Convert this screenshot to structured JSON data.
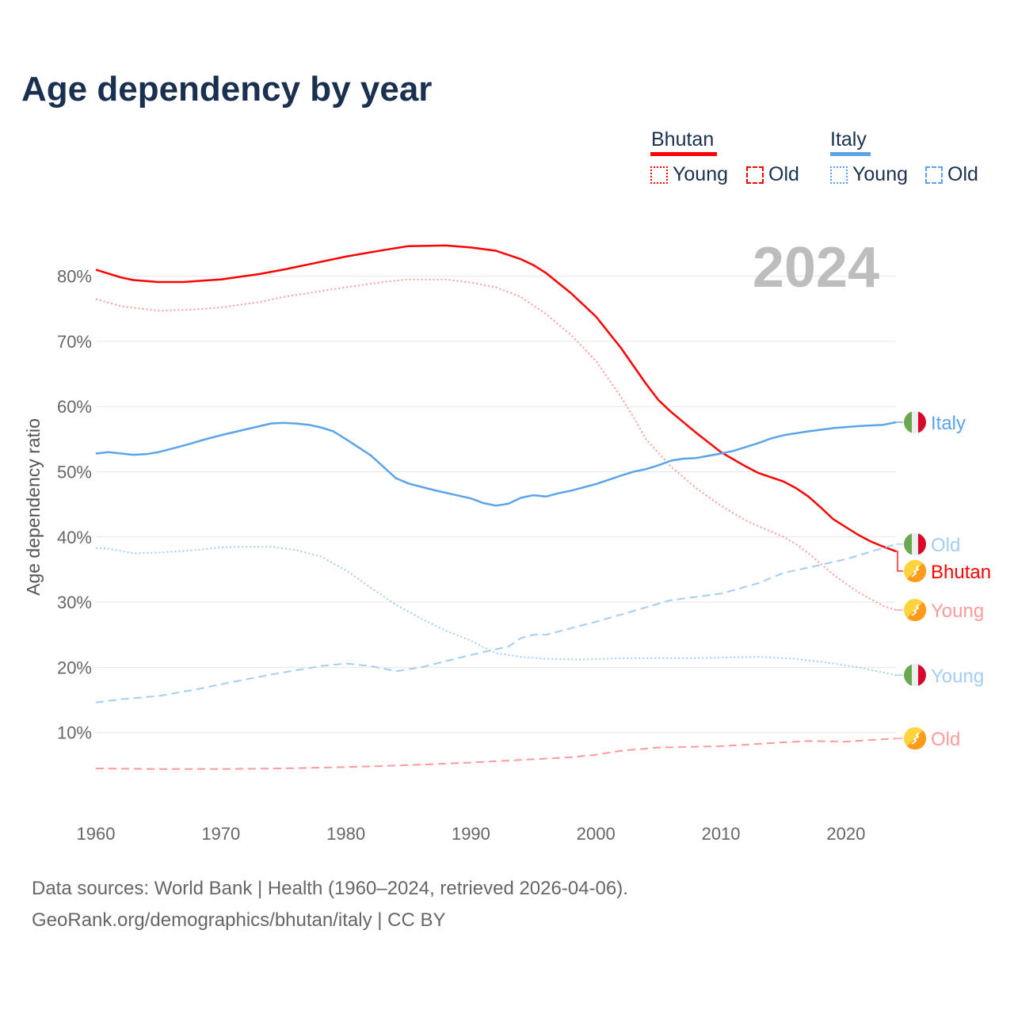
{
  "chart_data": {
    "type": "line",
    "title": "Age dependency by year",
    "ylabel": "Age dependency ratio",
    "xlabel": "",
    "year_watermark": "2024",
    "xlim": [
      1960,
      2024
    ],
    "ylim": [
      0,
      85
    ],
    "x_ticks": [
      "1960",
      "1970",
      "1980",
      "1990",
      "2000",
      "2010",
      "2020"
    ],
    "y_ticks": [
      "10%",
      "20%",
      "30%",
      "40%",
      "50%",
      "60%",
      "70%",
      "80%"
    ],
    "grid": true,
    "legend_placement": "top-right",
    "legend": {
      "countries": [
        {
          "name": "Bhutan",
          "color": "#ff0000",
          "items": [
            "Young",
            "Old"
          ]
        },
        {
          "name": "Italy",
          "color": "#5ba4ea",
          "items": [
            "Young",
            "Old"
          ]
        }
      ]
    },
    "series": [
      {
        "country": "Bhutan",
        "name": "Bhutan",
        "kind": "total",
        "label": "Bhutan",
        "color": "#ff0000",
        "dash": "solid",
        "points": [
          [
            1960,
            81
          ],
          [
            1962,
            79.8
          ],
          [
            1963,
            79.4
          ],
          [
            1965,
            79.1
          ],
          [
            1967,
            79.1
          ],
          [
            1970,
            79.5
          ],
          [
            1973,
            80.3
          ],
          [
            1975,
            81
          ],
          [
            1977,
            81.8
          ],
          [
            1980,
            83
          ],
          [
            1983,
            84
          ],
          [
            1985,
            84.6
          ],
          [
            1988,
            84.7
          ],
          [
            1990,
            84.4
          ],
          [
            1992,
            83.9
          ],
          [
            1994,
            82.6
          ],
          [
            1995,
            81.7
          ],
          [
            1996,
            80.5
          ],
          [
            1998,
            77.4
          ],
          [
            2000,
            73.8
          ],
          [
            2002,
            69
          ],
          [
            2004,
            63.5
          ],
          [
            2005,
            61
          ],
          [
            2006,
            59.2
          ],
          [
            2008,
            56
          ],
          [
            2010,
            53
          ],
          [
            2012,
            50.8
          ],
          [
            2013,
            49.8
          ],
          [
            2015,
            48.5
          ],
          [
            2016,
            47.5
          ],
          [
            2017,
            46.2
          ],
          [
            2018,
            44.5
          ],
          [
            2019,
            42.7
          ],
          [
            2020,
            41.5
          ],
          [
            2021,
            40.3
          ],
          [
            2022,
            39.3
          ],
          [
            2023,
            38.5
          ],
          [
            2024,
            37.8
          ]
        ]
      },
      {
        "country": "Bhutan",
        "name": "Bhutan Young",
        "kind": "young",
        "label": "Young",
        "color": "#ff9a9a",
        "dash": "dotted",
        "points": [
          [
            1960,
            76.5
          ],
          [
            1962,
            75.4
          ],
          [
            1965,
            74.7
          ],
          [
            1968,
            74.9
          ],
          [
            1970,
            75.2
          ],
          [
            1973,
            76
          ],
          [
            1975,
            76.8
          ],
          [
            1978,
            77.7
          ],
          [
            1980,
            78.3
          ],
          [
            1983,
            79.1
          ],
          [
            1985,
            79.5
          ],
          [
            1988,
            79.5
          ],
          [
            1990,
            79
          ],
          [
            1992,
            78.3
          ],
          [
            1994,
            76.8
          ],
          [
            1995,
            75.5
          ],
          [
            1996,
            74.2
          ],
          [
            1998,
            71
          ],
          [
            2000,
            67
          ],
          [
            2002,
            61.5
          ],
          [
            2003,
            58.4
          ],
          [
            2004,
            55
          ],
          [
            2006,
            50.8
          ],
          [
            2008,
            47.5
          ],
          [
            2010,
            44.8
          ],
          [
            2012,
            42.5
          ],
          [
            2015,
            40
          ],
          [
            2016,
            38.9
          ],
          [
            2017,
            37.5
          ],
          [
            2019,
            34.2
          ],
          [
            2021,
            31.5
          ],
          [
            2023,
            29.4
          ],
          [
            2024,
            28.8
          ]
        ]
      },
      {
        "country": "Bhutan",
        "name": "Bhutan Old",
        "kind": "old",
        "label": "Old",
        "color": "#ff9a9a",
        "dash": "dashed",
        "points": [
          [
            1960,
            4.5
          ],
          [
            1965,
            4.4
          ],
          [
            1970,
            4.4
          ],
          [
            1975,
            4.5
          ],
          [
            1980,
            4.7
          ],
          [
            1985,
            5
          ],
          [
            1990,
            5.4
          ],
          [
            1995,
            5.9
          ],
          [
            1998,
            6.2
          ],
          [
            2000,
            6.6
          ],
          [
            2002,
            7.2
          ],
          [
            2005,
            7.7
          ],
          [
            2010,
            7.9
          ],
          [
            2015,
            8.5
          ],
          [
            2017,
            8.7
          ],
          [
            2020,
            8.6
          ],
          [
            2024,
            9.1
          ]
        ]
      },
      {
        "country": "Italy",
        "name": "Italy",
        "kind": "total",
        "label": "Italy",
        "color": "#5ba4ea",
        "dash": "solid",
        "points": [
          [
            1960,
            52.8
          ],
          [
            1961,
            53
          ],
          [
            1963,
            52.6
          ],
          [
            1964,
            52.7
          ],
          [
            1965,
            53
          ],
          [
            1967,
            54
          ],
          [
            1969,
            55.1
          ],
          [
            1970,
            55.6
          ],
          [
            1972,
            56.5
          ],
          [
            1974,
            57.4
          ],
          [
            1975,
            57.5
          ],
          [
            1976,
            57.4
          ],
          [
            1977,
            57.2
          ],
          [
            1978,
            56.8
          ],
          [
            1979,
            56.2
          ],
          [
            1980,
            55
          ],
          [
            1982,
            52.5
          ],
          [
            1984,
            49
          ],
          [
            1985,
            48.2
          ],
          [
            1987,
            47.2
          ],
          [
            1990,
            45.9
          ],
          [
            1991,
            45.2
          ],
          [
            1992,
            44.8
          ],
          [
            1993,
            45.1
          ],
          [
            1994,
            46
          ],
          [
            1995,
            46.4
          ],
          [
            1996,
            46.2
          ],
          [
            1997,
            46.7
          ],
          [
            1998,
            47.1
          ],
          [
            2000,
            48.1
          ],
          [
            2002,
            49.4
          ],
          [
            2003,
            50
          ],
          [
            2004,
            50.4
          ],
          [
            2005,
            51
          ],
          [
            2006,
            51.7
          ],
          [
            2007,
            52
          ],
          [
            2008,
            52.1
          ],
          [
            2010,
            52.8
          ],
          [
            2011,
            53.2
          ],
          [
            2013,
            54.4
          ],
          [
            2014,
            55.1
          ],
          [
            2015,
            55.6
          ],
          [
            2017,
            56.2
          ],
          [
            2019,
            56.7
          ],
          [
            2021,
            57
          ],
          [
            2023,
            57.2
          ],
          [
            2024,
            57.6
          ]
        ]
      },
      {
        "country": "Italy",
        "name": "Italy Young",
        "kind": "young",
        "label": "Young",
        "color": "#a4cdf3",
        "dash": "dotted",
        "points": [
          [
            1960,
            38.3
          ],
          [
            1961,
            38.2
          ],
          [
            1963,
            37.5
          ],
          [
            1965,
            37.6
          ],
          [
            1968,
            38
          ],
          [
            1970,
            38.4
          ],
          [
            1972,
            38.5
          ],
          [
            1974,
            38.5
          ],
          [
            1976,
            38
          ],
          [
            1978,
            37
          ],
          [
            1980,
            34.9
          ],
          [
            1982,
            32.2
          ],
          [
            1984,
            29.6
          ],
          [
            1986,
            27.5
          ],
          [
            1988,
            25.6
          ],
          [
            1990,
            24.1
          ],
          [
            1991,
            23.1
          ],
          [
            1992,
            22.2
          ],
          [
            1994,
            21.6
          ],
          [
            1996,
            21.3
          ],
          [
            1999,
            21.2
          ],
          [
            2002,
            21.4
          ],
          [
            2008,
            21.4
          ],
          [
            2010,
            21.5
          ],
          [
            2013,
            21.6
          ],
          [
            2016,
            21.3
          ],
          [
            2019,
            20.6
          ],
          [
            2021,
            20
          ],
          [
            2024,
            18.8
          ]
        ]
      },
      {
        "country": "Italy",
        "name": "Italy Old",
        "kind": "old",
        "label": "Old",
        "color": "#a4cdf3",
        "dash": "dashed",
        "points": [
          [
            1960,
            14.6
          ],
          [
            1962,
            15.1
          ],
          [
            1965,
            15.6
          ],
          [
            1968,
            16.6
          ],
          [
            1970,
            17.4
          ],
          [
            1974,
            18.9
          ],
          [
            1978,
            20.2
          ],
          [
            1980,
            20.6
          ],
          [
            1982,
            20.2
          ],
          [
            1984,
            19.4
          ],
          [
            1986,
            20
          ],
          [
            1990,
            21.9
          ],
          [
            1993,
            23.2
          ],
          [
            1994,
            24.5
          ],
          [
            1995,
            25
          ],
          [
            1996,
            25
          ],
          [
            2000,
            27
          ],
          [
            2004,
            29.2
          ],
          [
            2006,
            30.3
          ],
          [
            2008,
            30.8
          ],
          [
            2010,
            31.3
          ],
          [
            2013,
            32.9
          ],
          [
            2015,
            34.5
          ],
          [
            2017,
            35.3
          ],
          [
            2020,
            36.6
          ],
          [
            2024,
            38.9
          ]
        ]
      }
    ]
  },
  "footer": {
    "line1": "Data sources: World Bank | Health (1960–2024, retrieved 2026-04-06).",
    "line2": "GeoRank.org/demographics/bhutan/italy | CC BY"
  }
}
